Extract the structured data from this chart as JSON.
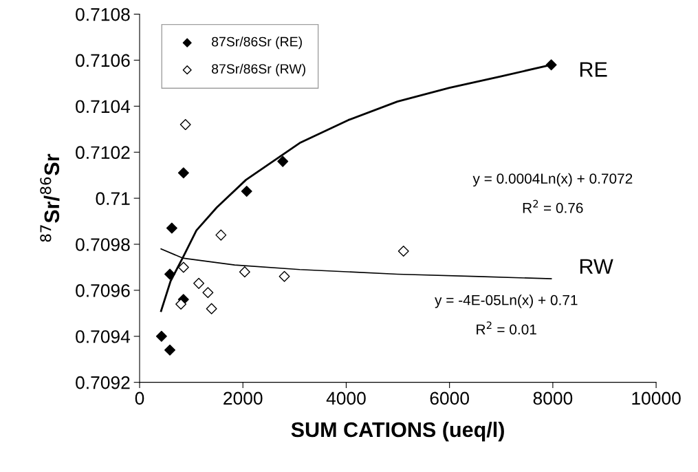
{
  "chart_data": {
    "type": "scatter",
    "xlabel": "SUM CATIONS (ueq/l)",
    "ylabel": "$^{87}$Sr/$^{86}$Sr",
    "xlim": [
      0,
      10000
    ],
    "xticks": [
      0,
      2000,
      4000,
      6000,
      8000,
      10000
    ],
    "ylim": [
      0.7092,
      0.7108
    ],
    "yticks": [
      0.7092,
      0.7094,
      0.7096,
      0.7098,
      0.71,
      0.7102,
      0.7104,
      0.7106,
      0.7108
    ],
    "grid": false,
    "legend": "top left",
    "marker": "diamond",
    "series": [
      {
        "name": "87Sr/86Sr (RE)",
        "color": "#000000",
        "x": [
          424,
          586,
          624,
          586,
          849,
          850,
          2073,
          2772,
          7970
        ],
        "values": [
          0.7094,
          0.70934,
          0.70987,
          0.70967,
          0.70956,
          0.71011,
          0.71003,
          0.71016,
          0.71058
        ]
      },
      {
        "name": "87Sr/86Sr (RW)",
        "color": "#ffffff",
        "x": [
          888,
          1575,
          5109,
          850,
          2035,
          2803,
          1146,
          1323,
          800,
          1393
        ],
        "values": [
          0.71032,
          0.70984,
          0.70977,
          0.7097,
          0.70968,
          0.70966,
          0.70963,
          0.70959,
          0.70954,
          0.70952
        ]
      },
      {
        "type": "line",
        "color": "#000000",
        "marker": "none",
        "x": [
          416,
          600,
          832,
          1100,
          1494,
          2060,
          3100,
          4043,
          4990,
          5998,
          7004,
          7970
        ],
        "values": [
          0.70951,
          0.70964,
          0.70974,
          0.70986,
          0.70996,
          0.71008,
          0.71024,
          0.71034,
          0.71042,
          0.71048,
          0.71053,
          0.71058
        ]
      },
      {
        "type": "line",
        "color": "#000000",
        "marker": "none",
        "x": [
          416,
          832,
          1840,
          3100,
          4990,
          6564,
          7970
        ],
        "values": [
          0.70978,
          0.70974,
          0.70971,
          0.70969,
          0.70967,
          0.70966,
          0.70965
        ]
      }
    ],
    "annotations": [
      "RE",
      "RW",
      "y = 0.0004Ln(x) + 0.7072",
      "R$^{2}$ = 0.76",
      "y = -4E-05Ln(x) + 0.71",
      "R$^{2}$ = 0.01"
    ]
  }
}
